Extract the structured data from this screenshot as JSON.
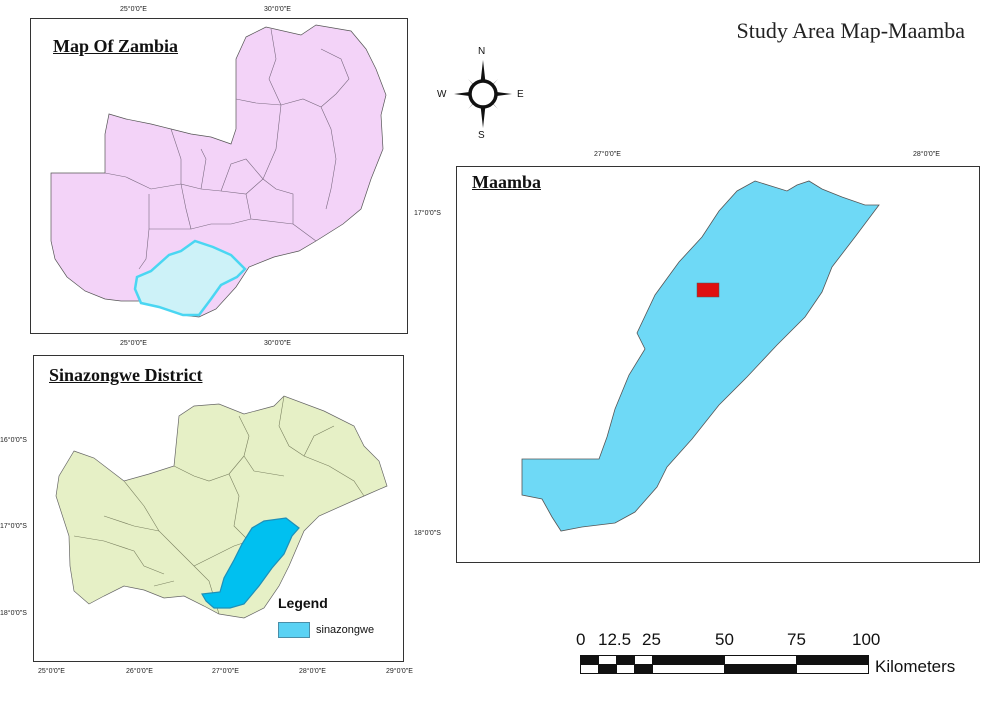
{
  "title": "Study Area Map-Maamba",
  "north_arrow": {
    "n": "N",
    "s": "S",
    "e": "E",
    "w": "W"
  },
  "zambia_map": {
    "title": "Map Of Zambia",
    "ticks_top": [
      "25°0'0\"E",
      "30°0'0\"E"
    ],
    "ticks_bottom": [
      "25°0'0\"E",
      "30°0'0\"E"
    ],
    "fill_color": "#f3d3f8",
    "highlight_color": "#cdf2f8"
  },
  "district_map": {
    "title": "Sinazongwe District",
    "ticks_left": [
      "16°0'0\"S",
      "17°0'0\"S",
      "18°0'0\"S"
    ],
    "ticks_bottom": [
      "25°0'0\"E",
      "26°0'0\"E",
      "27°0'0\"E",
      "28°0'0\"E",
      "29°0'0\"E"
    ],
    "fill_color": "#e6f0c6",
    "highlight_color": "#00c0f0"
  },
  "maamba_map": {
    "title": "Maamba",
    "ticks_top": [
      "27°0'0\"E",
      "28°0'0\"E"
    ],
    "ticks_left": [
      "17°0'0\"S",
      "18°0'0\"S"
    ],
    "fill_color": "#6ed9f6",
    "marker_color": "#e01010"
  },
  "legend": {
    "title": "Legend",
    "items": [
      {
        "label": "sinazongwe",
        "color": "#5ad2f4"
      }
    ]
  },
  "scale_bar": {
    "labels": [
      "0",
      "12.5",
      "25",
      "50",
      "75",
      "100"
    ],
    "unit": "Kilometers"
  }
}
